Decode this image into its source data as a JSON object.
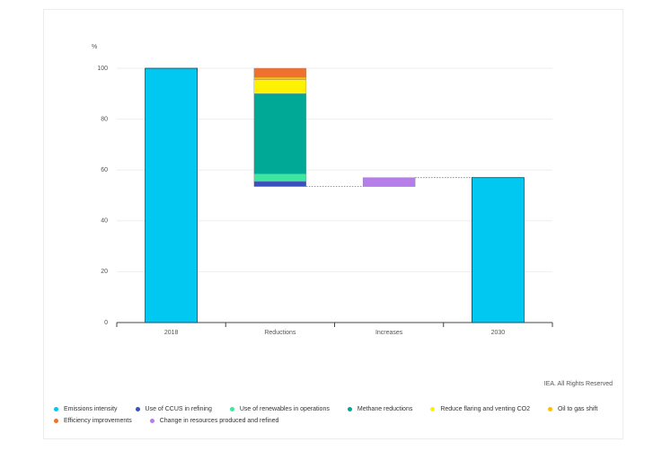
{
  "chart_data": {
    "type": "waterfall",
    "y_label": "%",
    "credit": "IEA. All Rights Reserved",
    "categories": [
      "2018",
      "Reductions",
      "Increases",
      "2030"
    ],
    "ylim": [
      0,
      100
    ],
    "yticks": [
      0,
      20,
      40,
      60,
      80,
      100
    ],
    "grid": true,
    "series": [
      {
        "name": "Emissions intensity",
        "color": "#00c8f0",
        "values": [
          100,
          null,
          null,
          57
        ]
      },
      {
        "name": "Use of CCUS in refining",
        "color": "#3a4fc0",
        "values": [
          null,
          -2,
          null,
          null
        ]
      },
      {
        "name": "Use of renewables in operations",
        "color": "#3ee6a2",
        "values": [
          null,
          -3,
          null,
          null
        ]
      },
      {
        "name": "Methane reductions",
        "color": "#00a896",
        "values": [
          null,
          -31.5,
          null,
          null
        ]
      },
      {
        "name": "Reduce flaring and venting CO2",
        "color": "#fff200",
        "values": [
          null,
          -5.5,
          null,
          null
        ]
      },
      {
        "name": "Oil to gas shift",
        "color": "#ffc000",
        "values": [
          null,
          -1,
          null,
          null
        ]
      },
      {
        "name": "Efficiency improvements",
        "color": "#f0702e",
        "values": [
          null,
          -3.5,
          null,
          null
        ]
      },
      {
        "name": "Change in resources produced and refined",
        "color": "#b57ee8",
        "values": [
          null,
          null,
          3.5,
          null
        ]
      }
    ]
  }
}
